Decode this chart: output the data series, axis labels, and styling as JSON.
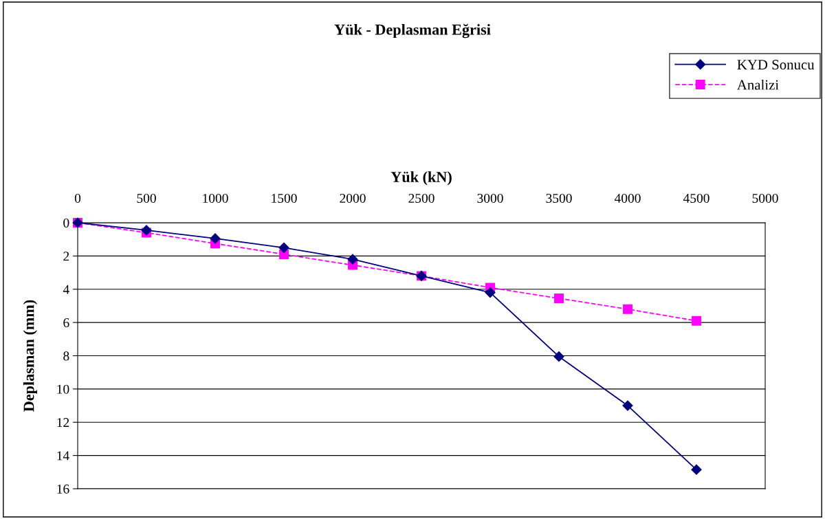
{
  "chart_data": {
    "type": "line",
    "title": "Yük - Deplasman Eğrisi",
    "xlabel": "Yük (kN)",
    "ylabel": "Deplasman (mm)",
    "x": [
      0,
      500,
      1000,
      1500,
      2000,
      2500,
      3000,
      3500,
      4000,
      4500
    ],
    "series": [
      {
        "name": "KYD Sonucu",
        "color": "#000080",
        "marker": "diamond",
        "line_style": "solid",
        "values": [
          0,
          0.45,
          0.95,
          1.5,
          2.2,
          3.2,
          4.2,
          8.05,
          11.0,
          14.85
        ]
      },
      {
        "name": "Analizi",
        "color": "#ff00ff",
        "marker": "square",
        "line_style": "dashed",
        "values": [
          0,
          0.6,
          1.25,
          1.9,
          2.55,
          3.2,
          3.9,
          4.55,
          5.2,
          5.9
        ]
      }
    ],
    "xlim": [
      0,
      5000
    ],
    "xticks": [
      0,
      500,
      1000,
      1500,
      2000,
      2500,
      3000,
      3500,
      4000,
      4500,
      5000
    ],
    "ylim": [
      16,
      0
    ],
    "yticks": [
      0,
      2,
      4,
      6,
      8,
      10,
      12,
      14,
      16
    ],
    "grid": "y",
    "legend": "top right"
  }
}
